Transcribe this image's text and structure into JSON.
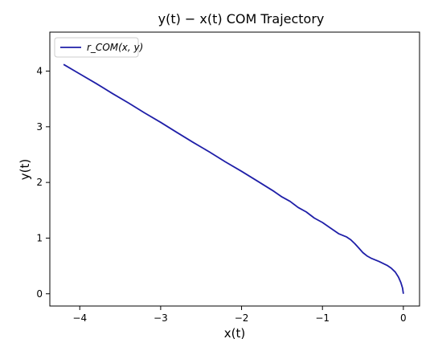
{
  "chart_data": {
    "type": "line",
    "title": "y(t) − x(t) COM Trajectory",
    "xlabel": "x(t)",
    "ylabel": "y(t)",
    "xlim": [
      -4.37,
      0.2
    ],
    "ylim": [
      -0.22,
      4.7
    ],
    "xticks": [
      -4,
      -3,
      -2,
      -1,
      0
    ],
    "yticks": [
      0,
      1,
      2,
      3,
      4
    ],
    "xtick_labels": [
      "−4",
      "−3",
      "−2",
      "−1",
      "0"
    ],
    "ytick_labels": [
      "0",
      "1",
      "2",
      "3",
      "4"
    ],
    "grid": false,
    "legend_position": "top-left",
    "series": [
      {
        "name": "r_COM(x, y)",
        "color": "#1f1fa8",
        "x": [
          0.0,
          -0.01,
          -0.03,
          -0.06,
          -0.1,
          -0.15,
          -0.2,
          -0.3,
          -0.4,
          -0.45,
          -0.5,
          -0.55,
          -0.6,
          -0.65,
          -0.7,
          -0.8,
          -0.9,
          -1.0,
          -1.1,
          -1.2,
          -1.3,
          -1.4,
          -1.5,
          -1.6,
          -1.8,
          -2.0,
          -2.2,
          -2.4,
          -2.6,
          -2.8,
          -3.0,
          -3.2,
          -3.4,
          -3.6,
          -3.8,
          -4.0,
          -4.2
        ],
        "y": [
          0.0,
          0.1,
          0.2,
          0.3,
          0.39,
          0.46,
          0.51,
          0.58,
          0.64,
          0.68,
          0.74,
          0.82,
          0.9,
          0.97,
          1.02,
          1.08,
          1.18,
          1.28,
          1.36,
          1.47,
          1.55,
          1.66,
          1.74,
          1.84,
          2.02,
          2.2,
          2.37,
          2.55,
          2.72,
          2.9,
          3.08,
          3.25,
          3.43,
          3.6,
          3.78,
          3.95,
          4.12
        ]
      }
    ]
  }
}
